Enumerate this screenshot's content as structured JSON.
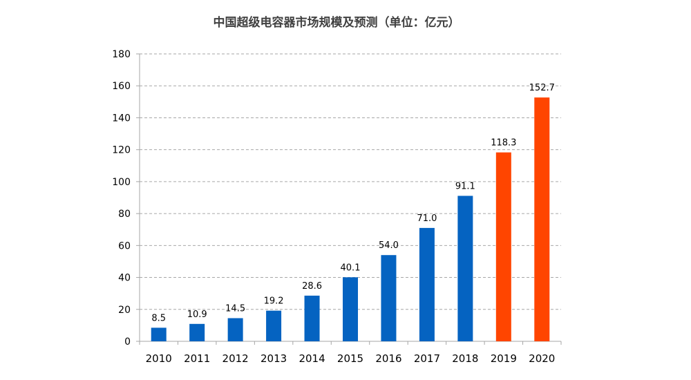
{
  "chart_data": {
    "type": "bar",
    "title": "中国超级电容器市场规模及预测（单位：亿元）",
    "xlabel": "",
    "ylabel": "",
    "categories": [
      "2010",
      "2011",
      "2012",
      "2013",
      "2014",
      "2015",
      "2016",
      "2017",
      "2018",
      "2019",
      "2020"
    ],
    "values": [
      8.5,
      10.9,
      14.5,
      19.2,
      28.6,
      40.1,
      54.0,
      71.0,
      91.1,
      118.3,
      152.7
    ],
    "value_labels": [
      "8.5",
      "10.9",
      "14.5",
      "19.2",
      "28.6",
      "40.1",
      "54.0",
      "71.0",
      "91.1",
      "118.3",
      "152.7"
    ],
    "bar_status": [
      "actual",
      "actual",
      "actual",
      "actual",
      "actual",
      "actual",
      "actual",
      "actual",
      "actual",
      "forecast",
      "forecast"
    ],
    "colors": {
      "actual": "#0563C1",
      "forecast": "#FF4500",
      "grid": "#A6A6A6",
      "axis": "#A6A6A6"
    },
    "ylim": [
      0,
      180
    ],
    "yticks": [
      0,
      20,
      40,
      60,
      80,
      100,
      120,
      140,
      160,
      180
    ],
    "grid": true,
    "grid_style": "dashed",
    "legend": "none"
  }
}
